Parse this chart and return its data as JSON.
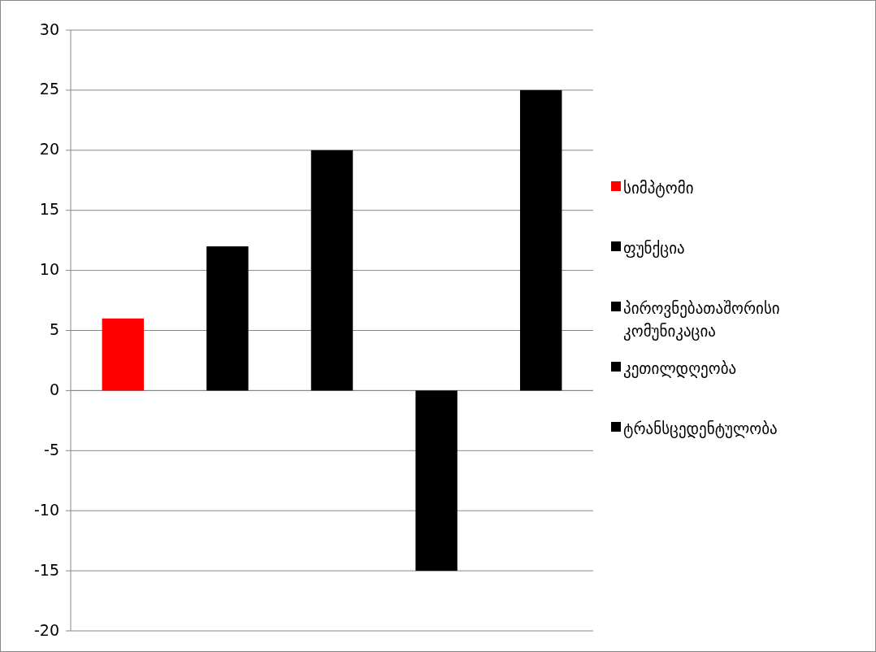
{
  "chart_data": {
    "type": "bar",
    "categories": [
      null,
      null,
      null,
      null,
      null
    ],
    "series": [
      {
        "name": "სიმპტომი",
        "color": "#ff0000",
        "values": [
          6,
          null,
          null,
          null,
          null
        ]
      },
      {
        "name": "ფუნქცია",
        "color": "#000000",
        "values": [
          null,
          12,
          null,
          null,
          null
        ]
      },
      {
        "name": "პიროვნებათაშორისი კომუნიკაცია",
        "color": "#000000",
        "values": [
          null,
          null,
          20,
          null,
          null
        ]
      },
      {
        "name": "კეთილდღეობა",
        "color": "#000000",
        "values": [
          null,
          null,
          null,
          -15,
          null
        ]
      },
      {
        "name": "ტრანსცედენტულობა",
        "color": "#000000",
        "values": [
          null,
          null,
          null,
          null,
          25
        ]
      }
    ],
    "ylim": [
      -20,
      30
    ],
    "yticks": [
      -20,
      -15,
      -10,
      -5,
      0,
      5,
      10,
      15,
      20,
      25,
      30
    ],
    "grid": "y",
    "legend": "right"
  }
}
